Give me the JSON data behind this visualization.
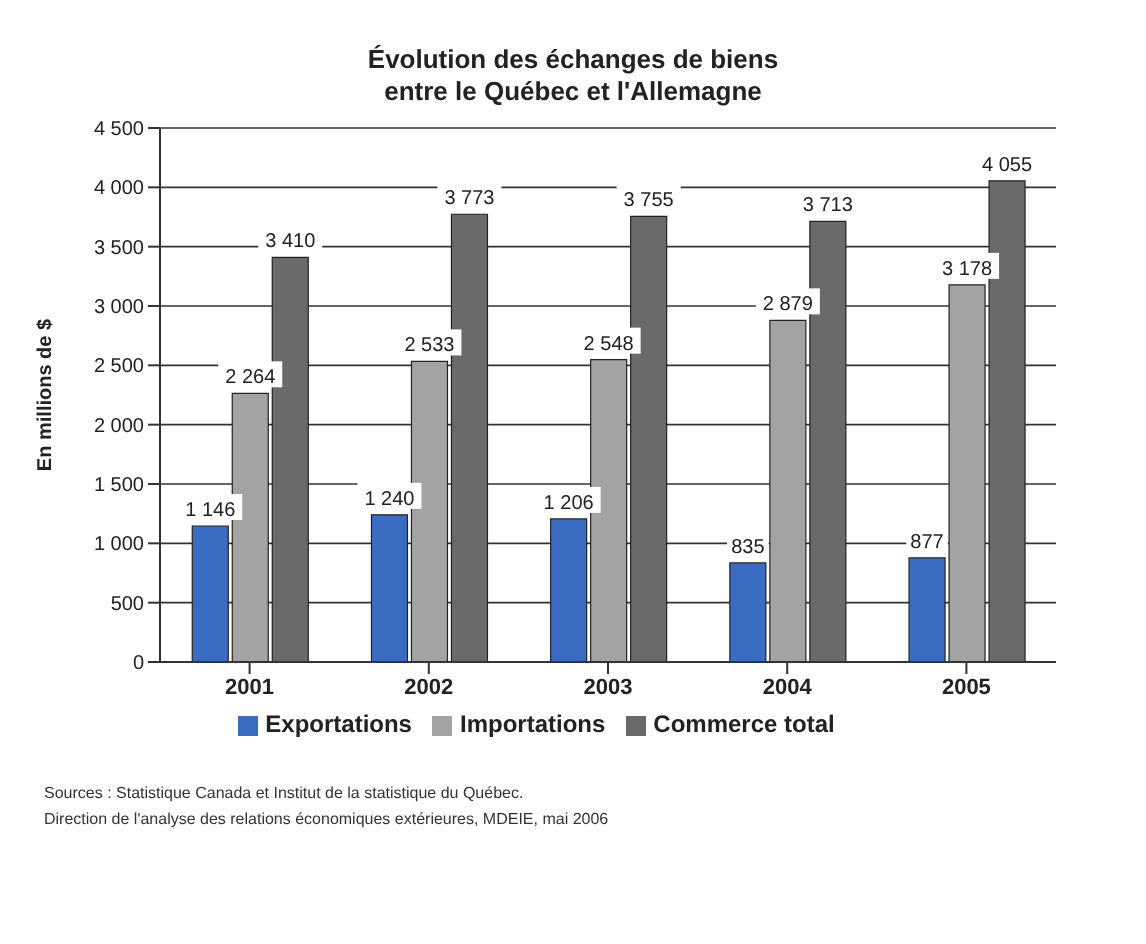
{
  "chart_data": {
    "type": "bar",
    "title": "Évolution des échanges de biens\nentre le Québec et l'Allemagne",
    "ylabel": "En millions de $",
    "categories": [
      "2001",
      "2002",
      "2003",
      "2004",
      "2005"
    ],
    "series": [
      {
        "name": "Exportations",
        "color": "#3b6cc4",
        "values": [
          1146,
          1240,
          1206,
          835,
          877
        ],
        "value_labels": [
          "1 146",
          "1 240",
          "1 206",
          "835",
          "877"
        ]
      },
      {
        "name": "Importations",
        "color": "#a3a3a3",
        "values": [
          2264,
          2533,
          2548,
          2879,
          3178
        ],
        "value_labels": [
          "2 264",
          "2 533",
          "2 548",
          "2 879",
          "3 178"
        ]
      },
      {
        "name": "Commerce total",
        "color": "#6a6a6a",
        "values": [
          3410,
          3773,
          3755,
          3713,
          4055
        ],
        "value_labels": [
          "3 410",
          "3 773",
          "3 755",
          "3 713",
          "4 055"
        ]
      }
    ],
    "ylim": [
      0,
      4500
    ],
    "yticks": [
      0,
      {
        "value": 500,
        "label": "500"
      },
      {
        "value": 1000,
        "label": "1 000"
      },
      {
        "value": 1500,
        "label": "1 500"
      },
      {
        "value": 2000,
        "label": "2 000"
      },
      {
        "value": 2500,
        "label": "2 500"
      },
      {
        "value": 3000,
        "label": "3 000"
      },
      {
        "value": 3500,
        "label": "3 500"
      },
      {
        "value": 4000,
        "label": "4 000"
      },
      {
        "value": 4500,
        "label": "4 500"
      }
    ],
    "grid": "y",
    "legend": "bottom",
    "annotations": [
      "Sources : Statistique Canada et Institut de la statistique du Québec.",
      "Direction de l'analyse des relations économiques extérieures, MDEIE, mai 2006"
    ]
  }
}
